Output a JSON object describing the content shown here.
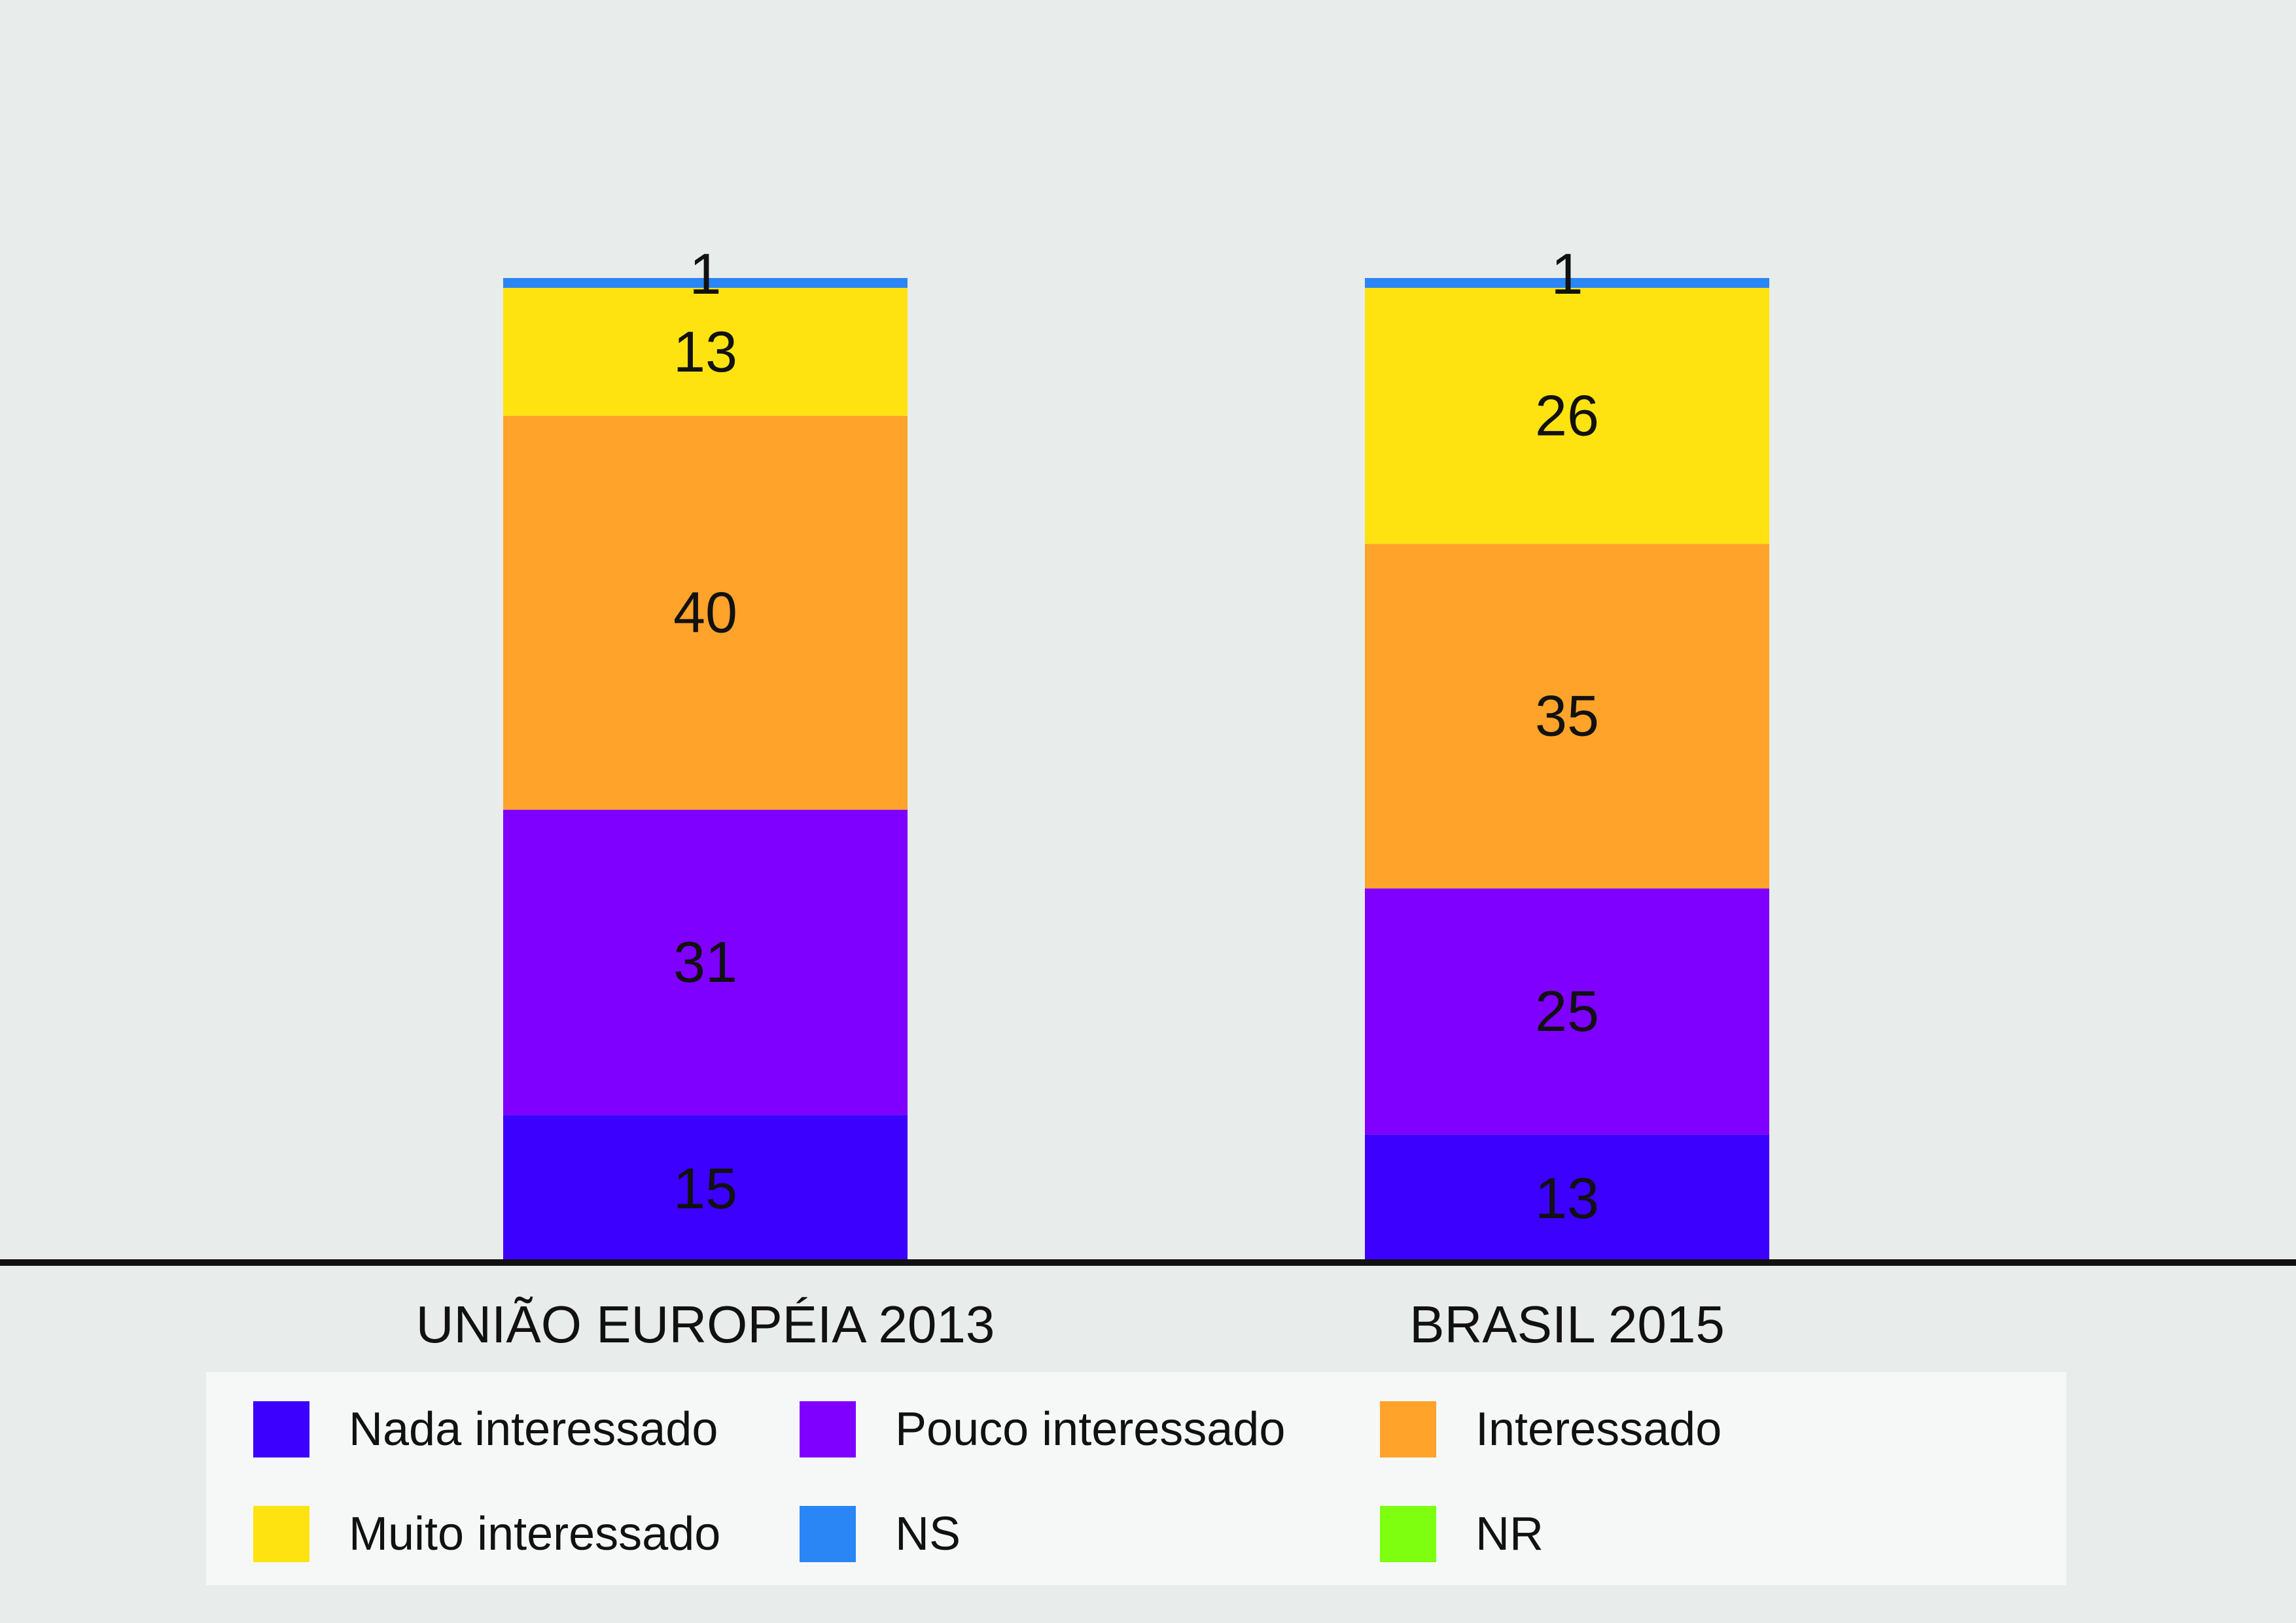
{
  "chart_data": {
    "type": "bar",
    "stacked": true,
    "title": "",
    "xlabel": "",
    "ylabel": "",
    "ylim": [
      0,
      100
    ],
    "grid": false,
    "legend_position": "bottom",
    "categories": [
      "UNIÃO EUROPÉIA 2013",
      "BRASIL 2015"
    ],
    "series": [
      {
        "name": "Nada interessado",
        "color": "#3c00ff",
        "values": [
          15,
          13
        ]
      },
      {
        "name": "Pouco interessado",
        "color": "#7f00ff",
        "values": [
          31,
          25
        ]
      },
      {
        "name": "Interessado",
        "color": "#ffa32a",
        "values": [
          40,
          35
        ]
      },
      {
        "name": "Muito interessado",
        "color": "#ffe311",
        "values": [
          13,
          26
        ]
      },
      {
        "name": "NS",
        "color": "#2a86f5",
        "values": [
          1,
          1
        ]
      },
      {
        "name": "NR",
        "color": "#7dff10",
        "values": [
          0,
          0
        ]
      }
    ]
  }
}
